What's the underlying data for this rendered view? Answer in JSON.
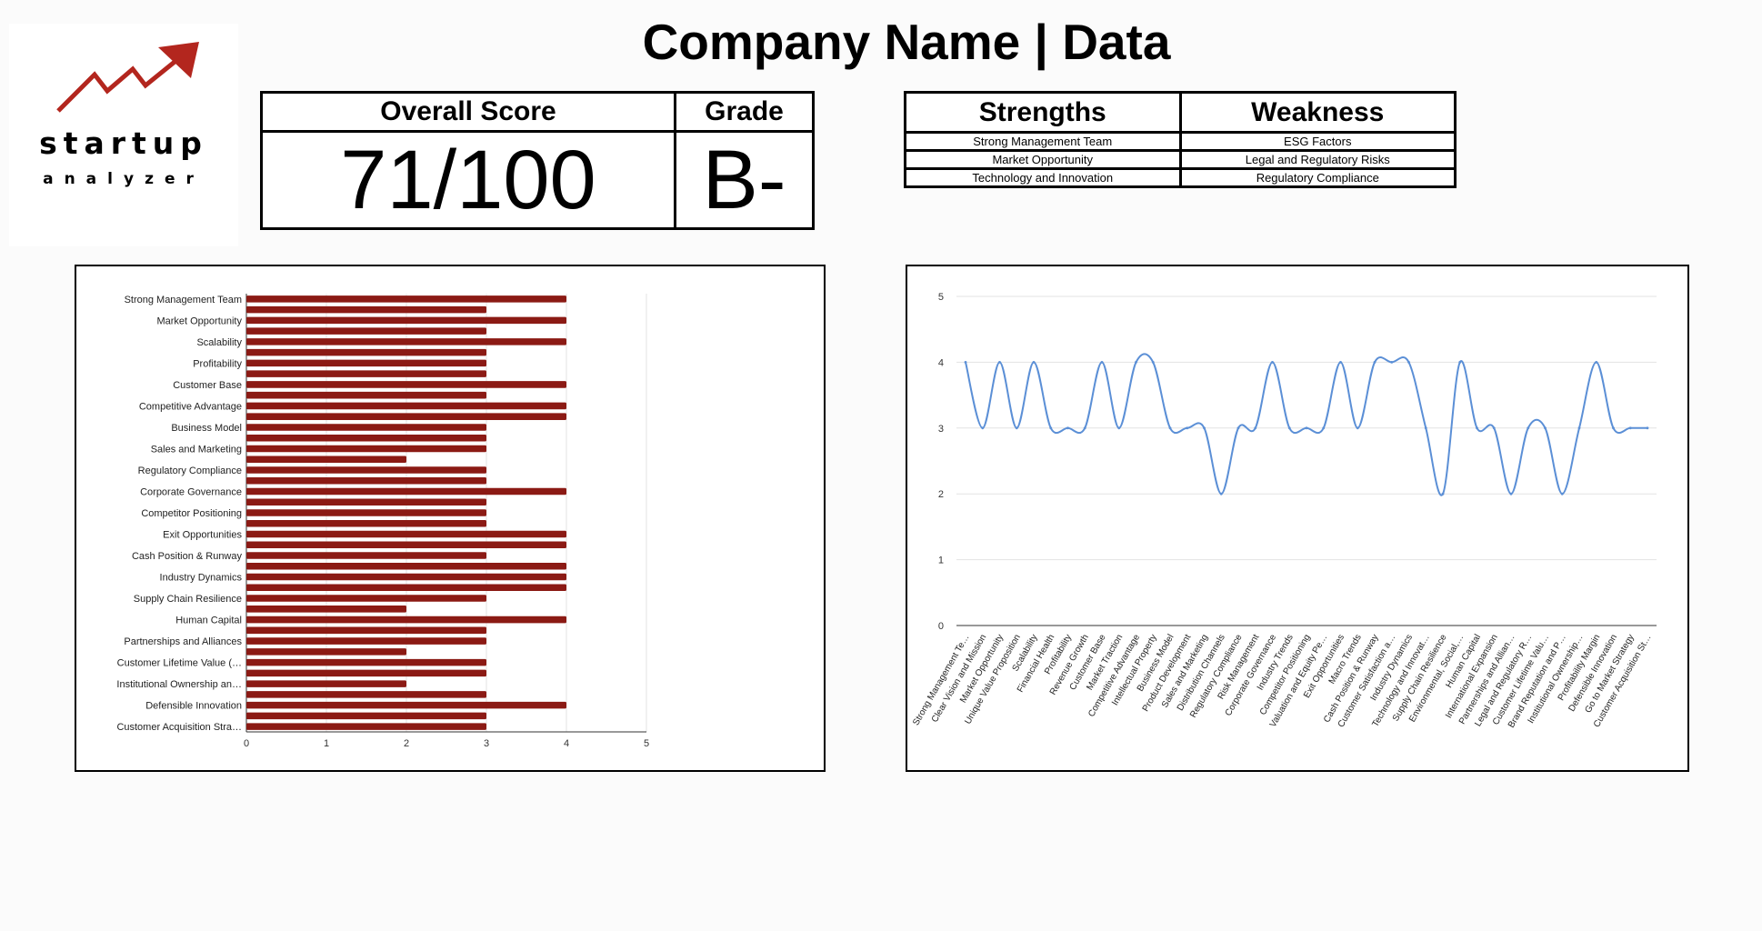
{
  "header": {
    "title": "Company Name | Data"
  },
  "logo": {
    "word": "startup",
    "subword": "analyzer",
    "color": "#b3261e"
  },
  "score_box": {
    "overall_label": "Overall Score",
    "overall_value": "71/100",
    "grade_label": "Grade",
    "grade_value": "B-"
  },
  "sw_box": {
    "strengths_label": "Strengths",
    "weakness_label": "Weakness",
    "strengths": [
      "Strong Management Team",
      "Market Opportunity",
      "Technology and Innovation"
    ],
    "weaknesses": [
      "ESG Factors",
      "Legal and Regulatory Risks",
      "Regulatory Compliance"
    ]
  },
  "chart_data": [
    {
      "type": "bar",
      "orientation": "horizontal",
      "color": "#8b1a14",
      "xlim": [
        0,
        5
      ],
      "xticks": [
        0,
        1,
        2,
        3,
        4,
        5
      ],
      "grid": true,
      "category_labels": [
        "Strong Management Team",
        "Market Opportunity",
        "Scalability",
        "Profitability",
        "Customer Base",
        "Competitive Advantage",
        "Business Model",
        "Sales and Marketing",
        "Regulatory Compliance",
        "Corporate Governance",
        "Competitor Positioning",
        "Exit Opportunities",
        "Cash Position & Runway",
        "Industry Dynamics",
        "Supply Chain Resilience",
        "Human Capital",
        "Partnerships and Alliances",
        "Customer Lifetime Value (…",
        "Institutional Ownership an…",
        "Defensible Innovation",
        "Customer Acquisition Stra…"
      ],
      "values": [
        4,
        3,
        4,
        3,
        4,
        3,
        3,
        3,
        4,
        3,
        4,
        4,
        3,
        3,
        3,
        2,
        3,
        3,
        4,
        3,
        3,
        3,
        4,
        4,
        3,
        4,
        4,
        4,
        3,
        2,
        4,
        3,
        3,
        2,
        3,
        3,
        2,
        3,
        4,
        3,
        3
      ]
    },
    {
      "type": "line",
      "color": "#5b8fd6",
      "ylim": [
        0,
        5
      ],
      "yticks": [
        0,
        1,
        2,
        3,
        4,
        5
      ],
      "grid": true,
      "categories": [
        "Strong Management Te…",
        "Clear Vision and Mission",
        "Market Opportunity",
        "Unique Value Proposition",
        "Scalability",
        "Financial Health",
        "Profitability",
        "Revenue Growth",
        "Customer Base",
        "Market Traction",
        "Competitive Advantage",
        "Intellectual Property",
        "Business Model",
        "Product Development",
        "Sales and Marketing",
        "Distribution Channels",
        "Regulatory Compliance",
        "Risk Management",
        "Corporate Governance",
        "Industry Trends",
        "Competitor Positioning",
        "Valuation and Equity Pe…",
        "Exit Opportunities",
        "Macro Trends",
        "Cash Position & Runway",
        "Customer Satisfaction a…",
        "Industry Dynamics",
        "Technology and Innovat…",
        "Supply Chain Resilience",
        "Environmental, Social,…",
        "Human Capital",
        "International Expansion",
        "Partnerships and Allian…",
        "Legal and Regulatory R…",
        "Customer Lifetime Valu…",
        "Brand Reputation and P…",
        "Institutional Ownership…",
        "Profitability Margin",
        "Defensible Innovation",
        "Go to Market Strategy",
        "Customer Acquisition St…"
      ],
      "values": [
        4,
        3,
        4,
        3,
        4,
        3,
        3,
        3,
        4,
        3,
        4,
        4,
        3,
        3,
        3,
        2,
        3,
        3,
        4,
        3,
        3,
        3,
        4,
        3,
        4,
        4,
        4,
        3,
        2,
        4,
        3,
        3,
        2,
        3,
        3,
        2,
        3,
        4,
        3,
        3,
        3
      ]
    }
  ]
}
